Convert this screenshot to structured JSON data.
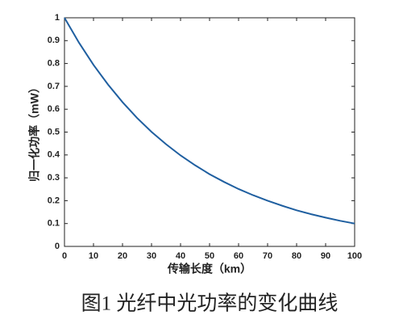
{
  "chart_data": {
    "type": "line",
    "xlabel": "传输长度（km）",
    "ylabel": "归一化功率（mW）",
    "caption": "图1  光纤中光功率的变化曲线",
    "x": [
      0,
      5,
      10,
      15,
      20,
      25,
      30,
      35,
      40,
      45,
      50,
      55,
      60,
      65,
      70,
      75,
      80,
      85,
      90,
      95,
      100
    ],
    "series": [
      {
        "color": "#1f5fa0",
        "values": [
          1,
          0.891,
          0.794,
          0.708,
          0.631,
          0.562,
          0.501,
          0.447,
          0.398,
          0.355,
          0.316,
          0.282,
          0.251,
          0.224,
          0.2,
          0.178,
          0.158,
          0.141,
          0.126,
          0.112,
          0.1
        ]
      }
    ],
    "xlim": [
      0,
      100
    ],
    "xticks": [
      0,
      10,
      20,
      30,
      40,
      50,
      60,
      70,
      80,
      90,
      100
    ],
    "ylim": [
      0,
      1
    ],
    "yticks": [
      0,
      0.1,
      0.2,
      0.3,
      0.4,
      0.5,
      0.6,
      0.7,
      0.8,
      0.9,
      1
    ],
    "grid": false
  }
}
